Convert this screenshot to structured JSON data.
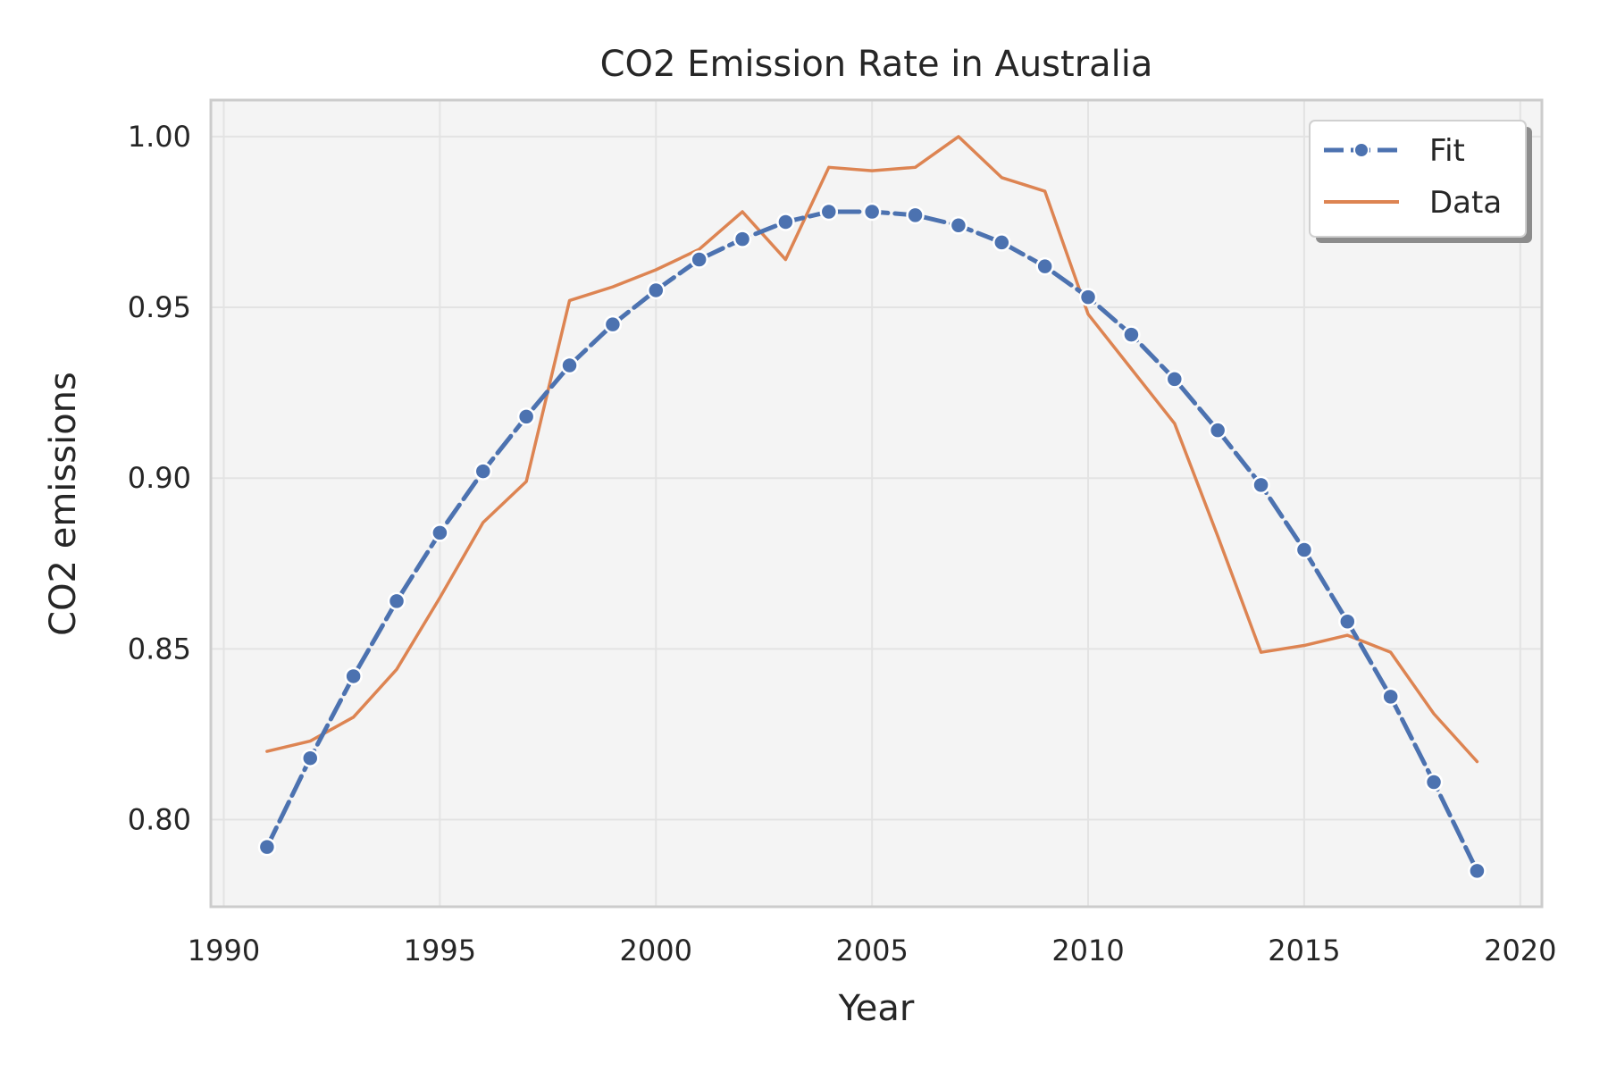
{
  "chart_data": {
    "type": "line",
    "title": "CO2 Emission Rate in Australia",
    "xlabel": "Year",
    "ylabel": "CO2 emissions",
    "xlim": [
      1989.7,
      2020.5
    ],
    "ylim": [
      0.7745,
      1.0107
    ],
    "xticks": [
      1990,
      1995,
      2000,
      2005,
      2010,
      2015,
      2020
    ],
    "yticks": [
      0.8,
      0.85,
      0.9,
      0.95,
      1.0
    ],
    "xtick_labels": [
      "1990",
      "1995",
      "2000",
      "2005",
      "2010",
      "2015",
      "2020"
    ],
    "ytick_labels": [
      "0.80",
      "0.85",
      "0.90",
      "0.95",
      "1.00"
    ],
    "grid": true,
    "legend_position": "top-right",
    "x": [
      1991,
      1992,
      1993,
      1994,
      1995,
      1996,
      1997,
      1998,
      1999,
      2000,
      2001,
      2002,
      2003,
      2004,
      2005,
      2006,
      2007,
      2008,
      2009,
      2010,
      2011,
      2012,
      2013,
      2014,
      2015,
      2016,
      2017,
      2018,
      2019
    ],
    "series": [
      {
        "name": "Fit",
        "color": "#4c72b0",
        "style": "dashed-with-markers",
        "values": [
          0.792,
          0.818,
          0.842,
          0.864,
          0.884,
          0.902,
          0.918,
          0.933,
          0.945,
          0.955,
          0.964,
          0.97,
          0.975,
          0.978,
          0.978,
          0.977,
          0.974,
          0.969,
          0.962,
          0.953,
          0.942,
          0.929,
          0.914,
          0.898,
          0.879,
          0.858,
          0.836,
          0.811,
          0.785
        ]
      },
      {
        "name": "Data",
        "color": "#dd8452",
        "style": "solid",
        "values": [
          0.82,
          0.823,
          0.83,
          0.844,
          0.865,
          0.887,
          0.899,
          0.952,
          0.956,
          0.961,
          0.967,
          0.978,
          0.964,
          0.991,
          0.99,
          0.991,
          1.0,
          0.988,
          0.984,
          0.948,
          0.932,
          0.916,
          0.883,
          0.849,
          0.851,
          0.854,
          0.849,
          0.831,
          0.817
        ]
      }
    ]
  }
}
